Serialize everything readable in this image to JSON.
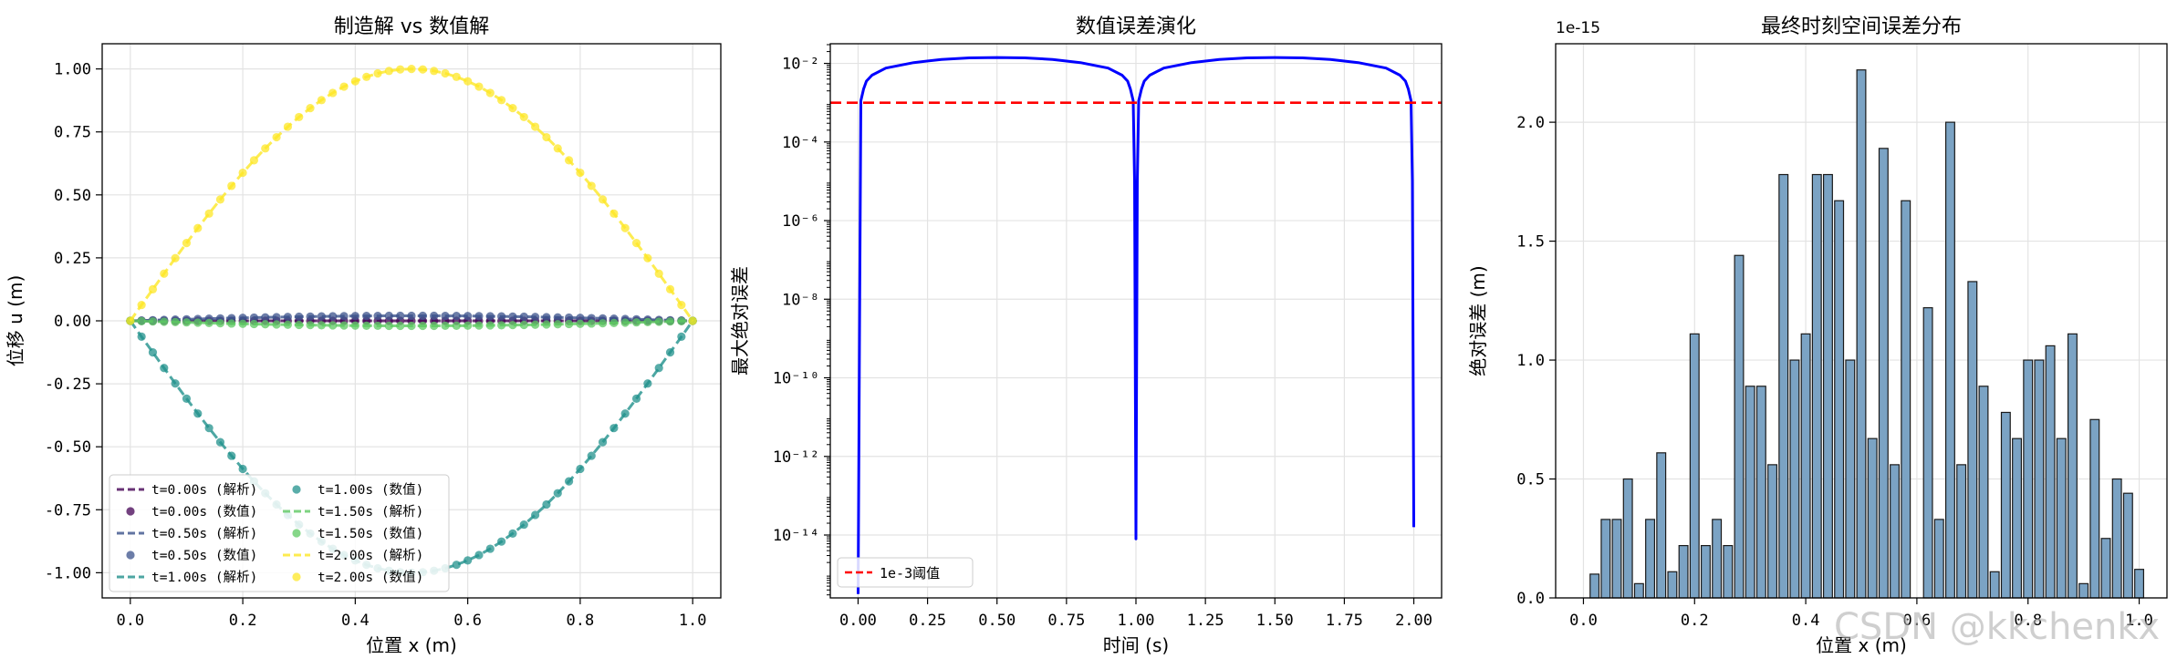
{
  "watermark": "CSDN @kkchenkx",
  "chart_data": [
    {
      "type": "line",
      "title": "制造解 vs 数值解",
      "xlabel": "位置 x (m)",
      "ylabel": "位移 u (m)",
      "xlim": [
        -0.05,
        1.05
      ],
      "ylim": [
        -1.1,
        1.1
      ],
      "xticks": [
        0.0,
        0.2,
        0.4,
        0.6,
        0.8,
        1.0
      ],
      "xtick_labels": [
        "0.0",
        "0.2",
        "0.4",
        "0.6",
        "0.8",
        "1.0"
      ],
      "yticks": [
        -1.0,
        -0.75,
        -0.5,
        -0.25,
        0.0,
        0.25,
        0.5,
        0.75,
        1.0
      ],
      "ytick_labels": [
        "-1.00",
        "-0.75",
        "-0.50",
        "-0.25",
        "0.00",
        "0.25",
        "0.50",
        "0.75",
        "1.00"
      ],
      "grid": true,
      "legend_position": "lower-left",
      "legend_columns": 2,
      "series": [
        {
          "name": "t=0.00s (解析)",
          "color": "#440154",
          "style": "dashed",
          "amplitude": 0.0
        },
        {
          "name": "t=0.00s (数值)",
          "color": "#440154",
          "style": "markers",
          "amplitude": 0.0
        },
        {
          "name": "t=0.50s (解析)",
          "color": "#3b528b",
          "style": "dashed",
          "amplitude": 0.02
        },
        {
          "name": "t=0.50s (数值)",
          "color": "#3b528b",
          "style": "markers",
          "amplitude": 0.02
        },
        {
          "name": "t=1.00s (解析)",
          "color": "#21918c",
          "style": "dashed",
          "amplitude": -1.0
        },
        {
          "name": "t=1.00s (数值)",
          "color": "#21918c",
          "style": "markers",
          "amplitude": -1.0
        },
        {
          "name": "t=1.50s (解析)",
          "color": "#5ec962",
          "style": "dashed",
          "amplitude": -0.02
        },
        {
          "name": "t=1.50s (数值)",
          "color": "#5ec962",
          "style": "markers",
          "amplitude": -0.02
        },
        {
          "name": "t=2.00s (解析)",
          "color": "#fde725",
          "style": "dashed",
          "amplitude": 1.0
        },
        {
          "name": "t=2.00s (数值)",
          "color": "#fde725",
          "style": "markers",
          "amplitude": 1.0
        }
      ],
      "x_points": 51
    },
    {
      "type": "line",
      "title": "数值误差演化",
      "xlabel": "时间 (s)",
      "ylabel": "最大绝对误差",
      "xlim": [
        -0.1,
        2.1
      ],
      "yscale": "log",
      "ylim_exponent": [
        -15.6,
        -1.5
      ],
      "xticks": [
        0.0,
        0.25,
        0.5,
        0.75,
        1.0,
        1.25,
        1.5,
        1.75,
        2.0
      ],
      "xtick_labels": [
        "0.00",
        "0.25",
        "0.50",
        "0.75",
        "1.00",
        "1.25",
        "1.50",
        "1.75",
        "2.00"
      ],
      "yticks_exponent": [
        -2,
        -4,
        -6,
        -8,
        -10,
        -12,
        -14
      ],
      "ytick_labels": [
        "10⁻²",
        "10⁻⁴",
        "10⁻⁶",
        "10⁻⁸",
        "10⁻¹⁰",
        "10⁻¹²",
        "10⁻¹⁴"
      ],
      "grid": true,
      "legend_position": "lower-left",
      "series": [
        {
          "name": "",
          "color": "#0000ff",
          "style": "solid",
          "x": [
            0.0,
            0.005,
            0.01,
            0.02,
            0.03,
            0.05,
            0.1,
            0.2,
            0.3,
            0.4,
            0.5,
            0.6,
            0.7,
            0.8,
            0.9,
            0.95,
            0.97,
            0.98,
            0.99,
            0.995,
            1.0,
            1.005,
            1.01,
            1.02,
            1.03,
            1.05,
            1.1,
            1.2,
            1.3,
            1.4,
            1.5,
            1.6,
            1.7,
            1.8,
            1.9,
            1.95,
            1.97,
            1.98,
            1.99,
            1.995,
            2.0
          ],
          "y_exponent": [
            -15.5,
            -9.0,
            -2.95,
            -2.65,
            -2.45,
            -2.3,
            -2.12,
            -1.98,
            -1.9,
            -1.86,
            -1.85,
            -1.86,
            -1.9,
            -1.98,
            -2.12,
            -2.3,
            -2.45,
            -2.65,
            -2.95,
            -5.0,
            -14.1,
            -5.0,
            -2.95,
            -2.65,
            -2.45,
            -2.3,
            -2.12,
            -1.98,
            -1.9,
            -1.86,
            -1.85,
            -1.86,
            -1.9,
            -1.98,
            -2.12,
            -2.3,
            -2.45,
            -2.65,
            -2.95,
            -5.0,
            -13.8
          ]
        },
        {
          "name": "1e-3阈值",
          "color": "#ff0000",
          "style": "dashed",
          "x": [
            -0.1,
            2.1
          ],
          "y_exponent": [
            -3,
            -3
          ]
        }
      ]
    },
    {
      "type": "bar",
      "title": "最终时刻空间误差分布",
      "xlabel": "位置 x (m)",
      "ylabel": "绝对误差 (m)",
      "offset_text": "1e-15",
      "xlim": [
        -0.05,
        1.05
      ],
      "ylim": [
        0,
        2.33
      ],
      "xticks": [
        0.0,
        0.2,
        0.4,
        0.6,
        0.8,
        1.0
      ],
      "xtick_labels": [
        "0.0",
        "0.2",
        "0.4",
        "0.6",
        "0.8",
        "1.0"
      ],
      "yticks": [
        0.0,
        0.5,
        1.0,
        1.5,
        2.0
      ],
      "ytick_labels": [
        "0.0",
        "0.5",
        "1.0",
        "1.5",
        "2.0"
      ],
      "grid": true,
      "bar_color": "#7ba3c4",
      "x": [
        0.0,
        0.02,
        0.04,
        0.06,
        0.08,
        0.1,
        0.12,
        0.14,
        0.16,
        0.18,
        0.2,
        0.22,
        0.24,
        0.26,
        0.28,
        0.3,
        0.32,
        0.34,
        0.36,
        0.38,
        0.4,
        0.42,
        0.44,
        0.46,
        0.48,
        0.5,
        0.52,
        0.54,
        0.56,
        0.58,
        0.6,
        0.62,
        0.64,
        0.66,
        0.68,
        0.7,
        0.72,
        0.74,
        0.76,
        0.78,
        0.8,
        0.82,
        0.84,
        0.86,
        0.88,
        0.9,
        0.92,
        0.94,
        0.96,
        0.98,
        1.0
      ],
      "values": [
        0.0,
        0.1,
        0.33,
        0.33,
        0.5,
        0.06,
        0.33,
        0.61,
        0.11,
        0.22,
        1.11,
        0.22,
        0.33,
        0.22,
        1.44,
        0.89,
        0.89,
        0.56,
        1.78,
        1.0,
        1.11,
        1.78,
        1.78,
        1.67,
        1.0,
        2.22,
        0.67,
        1.89,
        0.56,
        1.67,
        0.0,
        1.22,
        0.33,
        2.0,
        0.56,
        1.33,
        0.89,
        0.11,
        0.78,
        0.67,
        1.0,
        1.0,
        1.06,
        0.67,
        1.11,
        0.06,
        0.75,
        0.25,
        0.5,
        0.44,
        0.12
      ]
    }
  ]
}
